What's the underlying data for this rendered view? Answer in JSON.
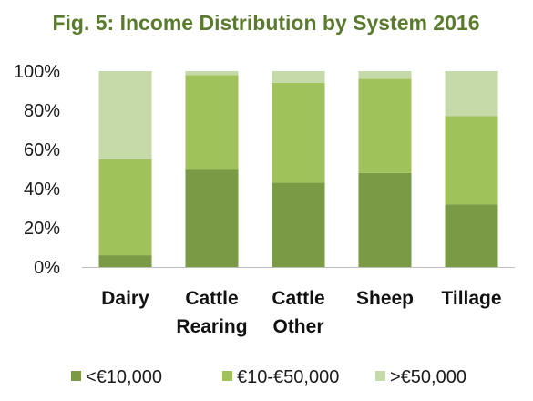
{
  "chart_data": {
    "type": "bar",
    "stacked": true,
    "title": "Fig. 5: Income Distribution by System 2016",
    "categories": [
      [
        "Dairy"
      ],
      [
        "Cattle",
        "Rearing"
      ],
      [
        "Cattle",
        "Other"
      ],
      [
        "Sheep"
      ],
      [
        "Tillage"
      ]
    ],
    "series": [
      {
        "name": "<€10,000",
        "color": "#7a9a45",
        "values": [
          6,
          50,
          43,
          48,
          32
        ]
      },
      {
        "name": "€10-€50,000",
        "color": "#9fc25a",
        "values": [
          49,
          48,
          51,
          48,
          45
        ]
      },
      {
        "name": ">€50,000",
        "color": "#c6d9a8",
        "values": [
          45,
          2,
          6,
          4,
          23
        ]
      }
    ],
    "yticks": [
      "0%",
      "20%",
      "40%",
      "60%",
      "80%",
      "100%"
    ],
    "ylim": [
      0,
      100
    ],
    "grid": false,
    "legend": "bottom"
  }
}
